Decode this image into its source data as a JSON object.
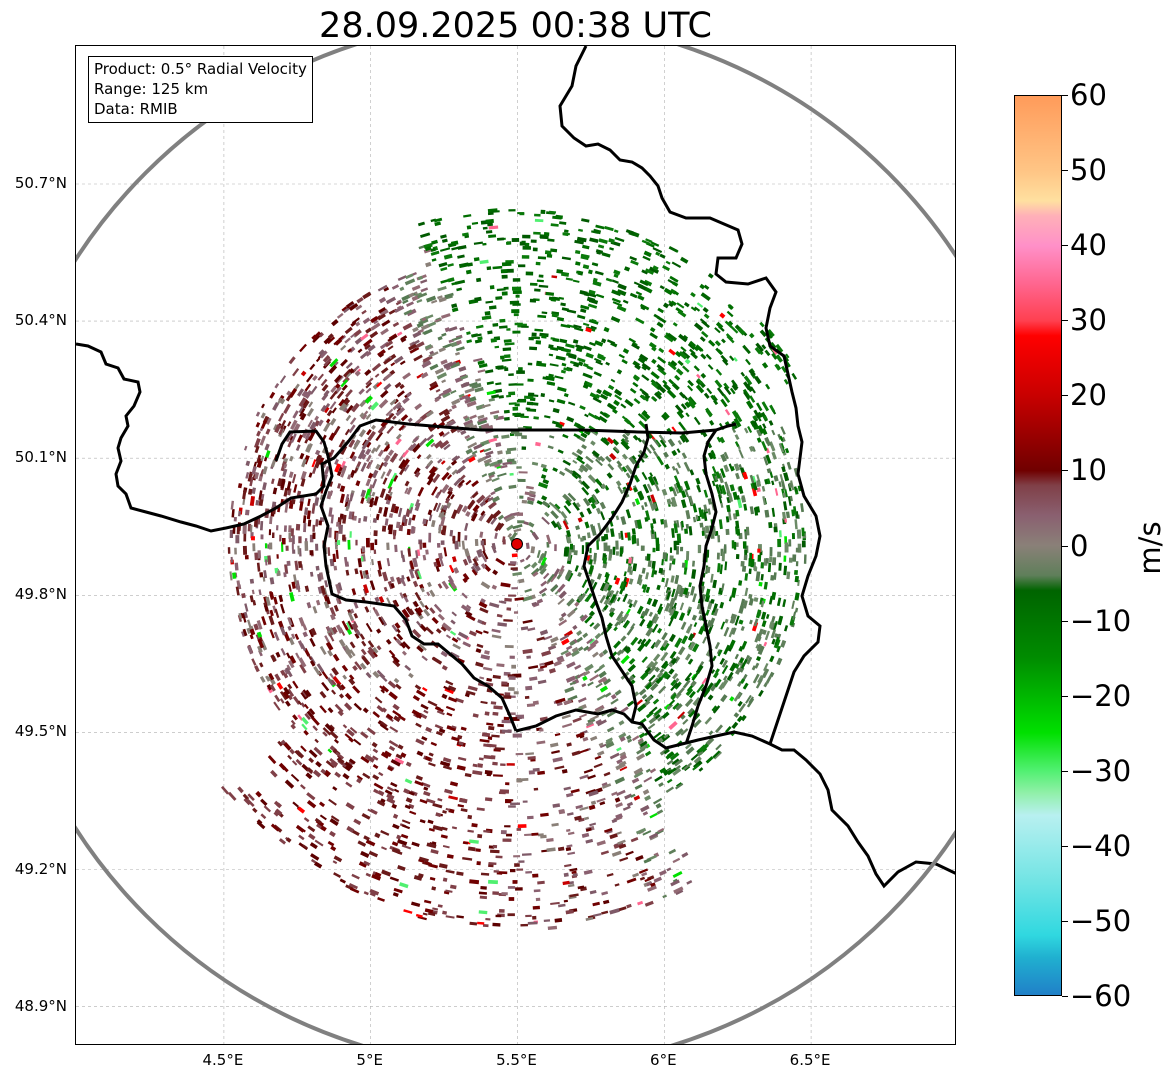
{
  "title": "28.09.2025 00:38 UTC",
  "info_box": {
    "product": "Product: 0.5° Radial Velocity",
    "range": "Range: 125 km",
    "data": "Data: RMIB"
  },
  "map": {
    "lon_range": [
      4.0,
      7.0
    ],
    "lat_range": [
      48.8,
      51.0
    ],
    "radar_site": {
      "lon": 5.505,
      "lat": 49.914
    },
    "range_ring_km": 125,
    "lat_ticks": [
      {
        "value": 50.7,
        "label": "50.7°N"
      },
      {
        "value": 50.4,
        "label": "50.4°N"
      },
      {
        "value": 50.1,
        "label": "50.1°N"
      },
      {
        "value": 49.8,
        "label": "49.8°N"
      },
      {
        "value": 49.5,
        "label": "49.5°N"
      },
      {
        "value": 49.2,
        "label": "49.2°N"
      },
      {
        "value": 48.9,
        "label": "48.9°N"
      }
    ],
    "lon_ticks": [
      {
        "value": 4.5,
        "label": "4.5°E"
      },
      {
        "value": 5.0,
        "label": "5°E"
      },
      {
        "value": 5.5,
        "label": "5.5°E"
      },
      {
        "value": 6.0,
        "label": "6°E"
      },
      {
        "value": 6.5,
        "label": "6.5°E"
      }
    ],
    "colors": {
      "border": "#000000",
      "range_ring": "#808080",
      "grid": "#b0b0b0",
      "radar_marker": "#e00000"
    }
  },
  "colorbar": {
    "unit": "m/s",
    "min": -60,
    "max": 60,
    "ticks": [
      {
        "value": 60,
        "label": "60"
      },
      {
        "value": 50,
        "label": "50"
      },
      {
        "value": 40,
        "label": "40"
      },
      {
        "value": 30,
        "label": "30"
      },
      {
        "value": 20,
        "label": "20"
      },
      {
        "value": 10,
        "label": "10"
      },
      {
        "value": 0,
        "label": "0"
      },
      {
        "value": -10,
        "label": "−10"
      },
      {
        "value": -20,
        "label": "−20"
      },
      {
        "value": -30,
        "label": "−30"
      },
      {
        "value": -40,
        "label": "−40"
      },
      {
        "value": -50,
        "label": "−50"
      },
      {
        "value": -60,
        "label": "−60"
      }
    ],
    "stops": [
      {
        "value": 60,
        "color": "#ff9b5a"
      },
      {
        "value": 55,
        "color": "#ffb070"
      },
      {
        "value": 50,
        "color": "#ffc585"
      },
      {
        "value": 46,
        "color": "#ffe0a0"
      },
      {
        "value": 44,
        "color": "#ffb0b8"
      },
      {
        "value": 40,
        "color": "#ff90c8"
      },
      {
        "value": 35,
        "color": "#ff6690"
      },
      {
        "value": 30,
        "color": "#ff4050"
      },
      {
        "value": 28,
        "color": "#ff0000"
      },
      {
        "value": 20,
        "color": "#c80000"
      },
      {
        "value": 10,
        "color": "#700000"
      },
      {
        "value": 8,
        "color": "#804048"
      },
      {
        "value": 4,
        "color": "#8a6070"
      },
      {
        "value": 0,
        "color": "#8a8078"
      },
      {
        "value": -4,
        "color": "#5f7f5a"
      },
      {
        "value": -6,
        "color": "#006400"
      },
      {
        "value": -15,
        "color": "#008c00"
      },
      {
        "value": -25,
        "color": "#00e000"
      },
      {
        "value": -30,
        "color": "#50f070"
      },
      {
        "value": -33,
        "color": "#90f0a8"
      },
      {
        "value": -36,
        "color": "#b8f0f0"
      },
      {
        "value": -45,
        "color": "#70e4e4"
      },
      {
        "value": -52,
        "color": "#30d8e0"
      },
      {
        "value": -55,
        "color": "#20b0d0"
      },
      {
        "value": -60,
        "color": "#2080c8"
      }
    ]
  }
}
